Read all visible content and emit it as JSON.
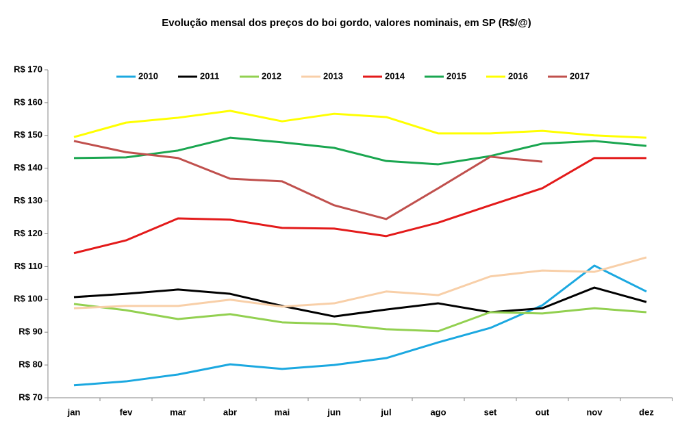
{
  "chart_data": {
    "type": "line",
    "title": "Evolução mensal dos preços do boi gordo, valores nominais, em SP (R$/@)",
    "categories": [
      "jan",
      "fev",
      "mar",
      "abr",
      "mai",
      "jun",
      "jul",
      "ago",
      "set",
      "out",
      "nov",
      "dez"
    ],
    "series": [
      {
        "name": "2010",
        "color": "#1ba8e0",
        "values": [
          73.8,
          75.0,
          77.1,
          80.2,
          78.8,
          80.0,
          82.1,
          86.9,
          91.3,
          98.2,
          110.3,
          102.4
        ]
      },
      {
        "name": "2011",
        "color": "#000000",
        "values": [
          100.7,
          101.7,
          103.0,
          101.7,
          98.0,
          94.8,
          96.9,
          98.8,
          96.1,
          97.3,
          103.6,
          99.2
        ]
      },
      {
        "name": "2012",
        "color": "#92d050",
        "values": [
          98.6,
          96.7,
          94.0,
          95.5,
          93.0,
          92.5,
          90.9,
          90.3,
          96.1,
          95.7,
          97.3,
          96.1
        ]
      },
      {
        "name": "2013",
        "color": "#f8cfa8",
        "values": [
          97.3,
          98.0,
          98.0,
          99.9,
          97.8,
          98.8,
          102.4,
          101.3,
          107.0,
          108.8,
          108.4,
          112.8
        ]
      },
      {
        "name": "2014",
        "color": "#e31a1a",
        "values": [
          114.1,
          118.0,
          124.7,
          124.3,
          121.8,
          121.6,
          119.3,
          123.4,
          128.7,
          133.9,
          143.1,
          143.1
        ]
      },
      {
        "name": "2015",
        "color": "#1aa650",
        "values": [
          143.1,
          143.3,
          145.4,
          149.3,
          147.9,
          146.2,
          142.2,
          141.2,
          143.7,
          147.5,
          148.3,
          146.8
        ]
      },
      {
        "name": "2016",
        "color": "#ffff00",
        "values": [
          149.5,
          153.9,
          155.4,
          157.5,
          154.3,
          156.6,
          155.6,
          150.6,
          150.6,
          151.4,
          150.0,
          149.3
        ]
      },
      {
        "name": "2017",
        "color": "#c0504d",
        "values": [
          148.3,
          144.9,
          143.1,
          136.8,
          136.0,
          128.7,
          124.5,
          133.9,
          143.5,
          142.0,
          null,
          null
        ]
      }
    ],
    "ylim": [
      70,
      170
    ],
    "yticks": [
      {
        "value": 70,
        "label": "R$ 70"
      },
      {
        "value": 80,
        "label": "R$ 80"
      },
      {
        "value": 90,
        "label": "R$ 90"
      },
      {
        "value": 100,
        "label": "R$ 100"
      },
      {
        "value": 110,
        "label": "R$ 110"
      },
      {
        "value": 120,
        "label": "R$ 120"
      },
      {
        "value": 130,
        "label": "R$ 130"
      },
      {
        "value": 140,
        "label": "R$ 140"
      },
      {
        "value": 150,
        "label": "R$ 150"
      },
      {
        "value": 160,
        "label": "R$ 160"
      },
      {
        "value": 170,
        "label": "R$ 170"
      }
    ],
    "grid": false,
    "legend": "top"
  }
}
